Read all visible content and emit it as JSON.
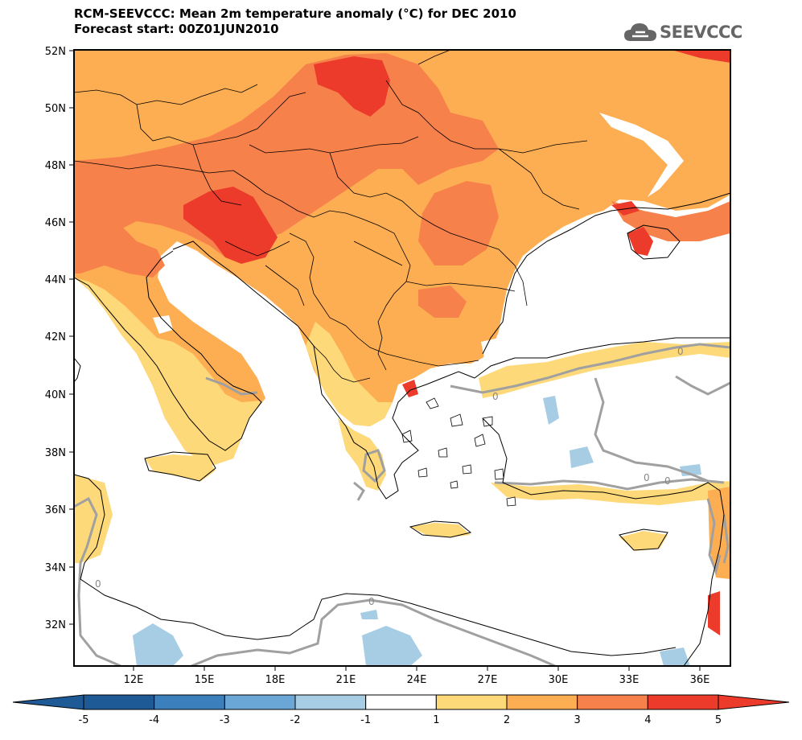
{
  "header": {
    "title_line1": "RCM-SEEVCCC: Mean 2m temperature anomaly (°C) for DEC 2010",
    "title_line2": "Forecast start: 00Z01JUN2010",
    "logo_text": "SEEVCCC"
  },
  "map": {
    "lat_labels": [
      "52N",
      "50N",
      "48N",
      "46N",
      "44N",
      "42N",
      "40N",
      "38N",
      "36N",
      "34N",
      "32N"
    ],
    "lon_labels": [
      "12E",
      "15E",
      "18E",
      "21E",
      "24E",
      "27E",
      "30E",
      "33E",
      "36E"
    ],
    "contour_label": "0"
  },
  "colorbar": {
    "colors": [
      "#1e5a96",
      "#3b7fbc",
      "#6aa6d6",
      "#a6cde3",
      "#ffffff",
      "#fed979",
      "#fdae53",
      "#f7814a",
      "#ec3b2a"
    ],
    "labels": [
      "-5",
      "-4",
      "-3",
      "-2",
      "-1",
      "1",
      "2",
      "3",
      "4",
      "5"
    ]
  },
  "colors": {
    "frame": "#000000",
    "land_border": "#000000",
    "zero_contour": "#a0a0a0",
    "logo": "#666666"
  }
}
